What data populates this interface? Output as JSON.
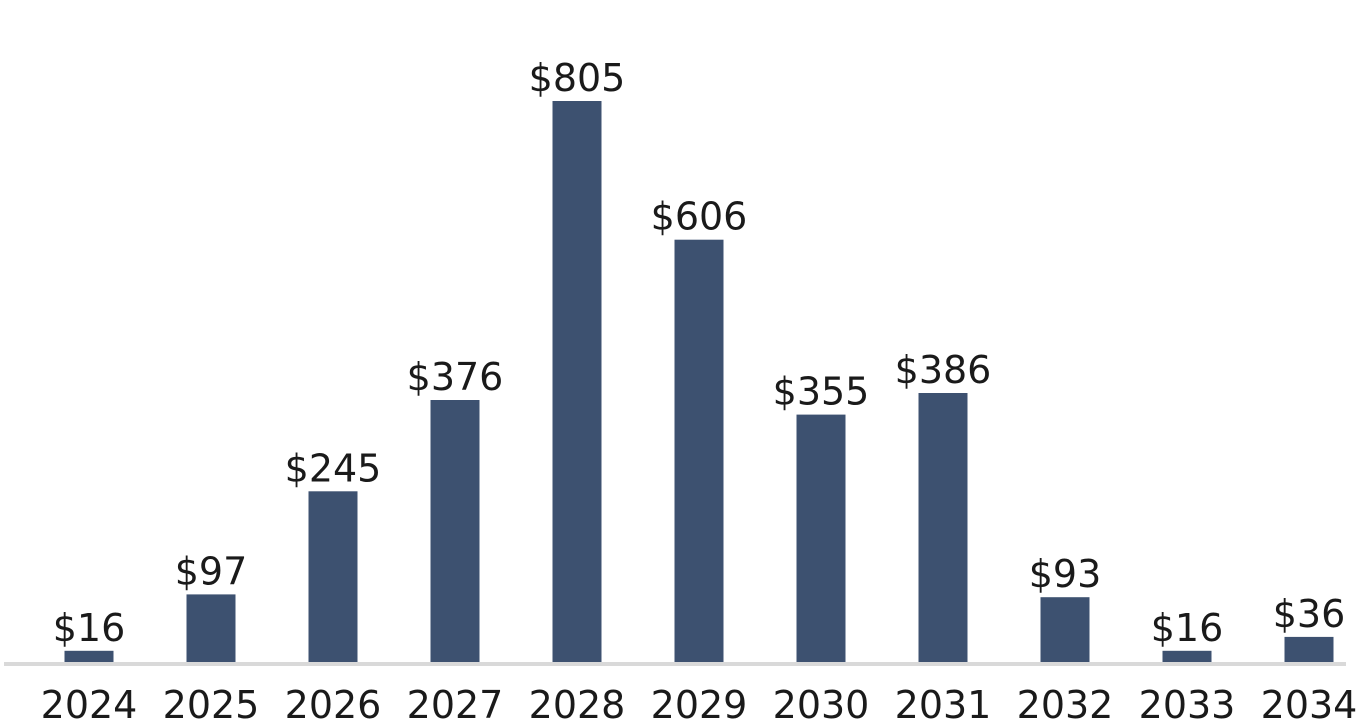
{
  "chart_data": {
    "type": "bar",
    "categories": [
      "2024",
      "2025",
      "2026",
      "2027",
      "2028",
      "2029",
      "2030",
      "2031",
      "2032",
      "2033",
      "2034"
    ],
    "values": [
      16,
      97,
      245,
      376,
      805,
      606,
      355,
      386,
      93,
      16,
      36
    ],
    "value_labels": [
      "$16",
      "$97",
      "$245",
      "$376",
      "$805",
      "$606",
      "$355",
      "$386",
      "$93",
      "$16",
      "$36"
    ],
    "title": "",
    "xlabel": "",
    "ylabel": "",
    "ylim": [
      0,
      805
    ],
    "grid": false,
    "legend": "none",
    "colors": {
      "bar": "#3d5170",
      "baseline": "#d9d9d9",
      "text": "#1a1a1a"
    }
  }
}
